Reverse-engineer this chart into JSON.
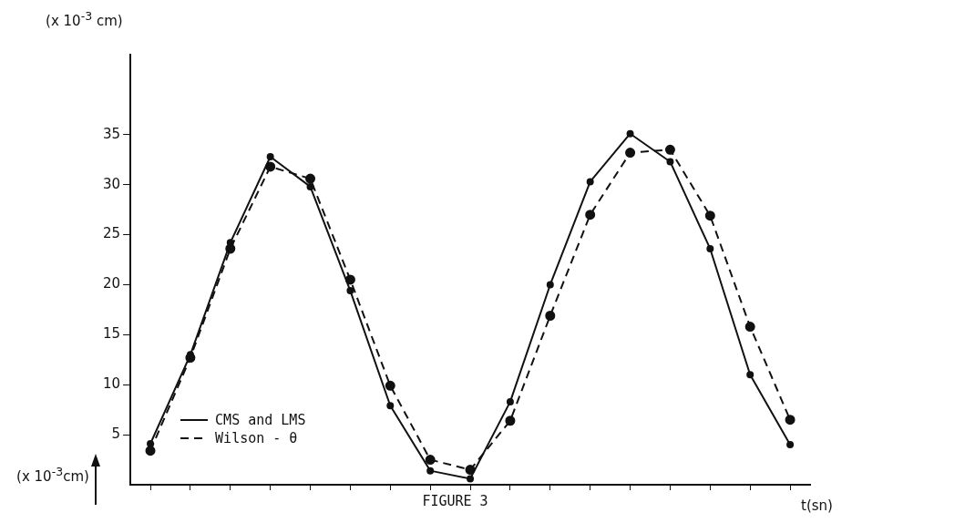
{
  "chart_data": {
    "type": "line",
    "title": "FIGURE 3",
    "xlabel": "t(sn)",
    "ylabel": "(x 10$^{-3}$ cm)",
    "annotations": [
      "(x 10$^{-3}$cm)"
    ],
    "categories": [
      null,
      null,
      null,
      null,
      null,
      null,
      null,
      null,
      null,
      null,
      null,
      null,
      null,
      null,
      null,
      null,
      null
    ],
    "series": [
      {
        "name": "CMS and LMS",
        "color": "#111111",
        "line_style": "solid",
        "values": [
          4.1,
          13.0,
          24.2,
          32.8,
          29.8,
          19.4,
          7.9,
          1.4,
          0.6,
          8.3,
          20.0,
          30.3,
          35.1,
          32.3,
          23.6,
          11.0,
          4.0
        ]
      },
      {
        "name": "Wilson - θ",
        "color": "#111111",
        "line_style": "dashed",
        "values": [
          3.4,
          12.7,
          23.6,
          31.8,
          30.6,
          20.5,
          9.9,
          2.5,
          1.5,
          6.4,
          16.9,
          27.0,
          33.2,
          33.5,
          26.9,
          15.8,
          6.5
        ]
      }
    ],
    "ylim": [
      0,
      43
    ],
    "yticks": [
      5,
      10,
      15,
      20,
      25,
      30,
      35
    ],
    "tick_labels": "y",
    "grid": false,
    "legend": "bottom left",
    "marker": "circle"
  }
}
